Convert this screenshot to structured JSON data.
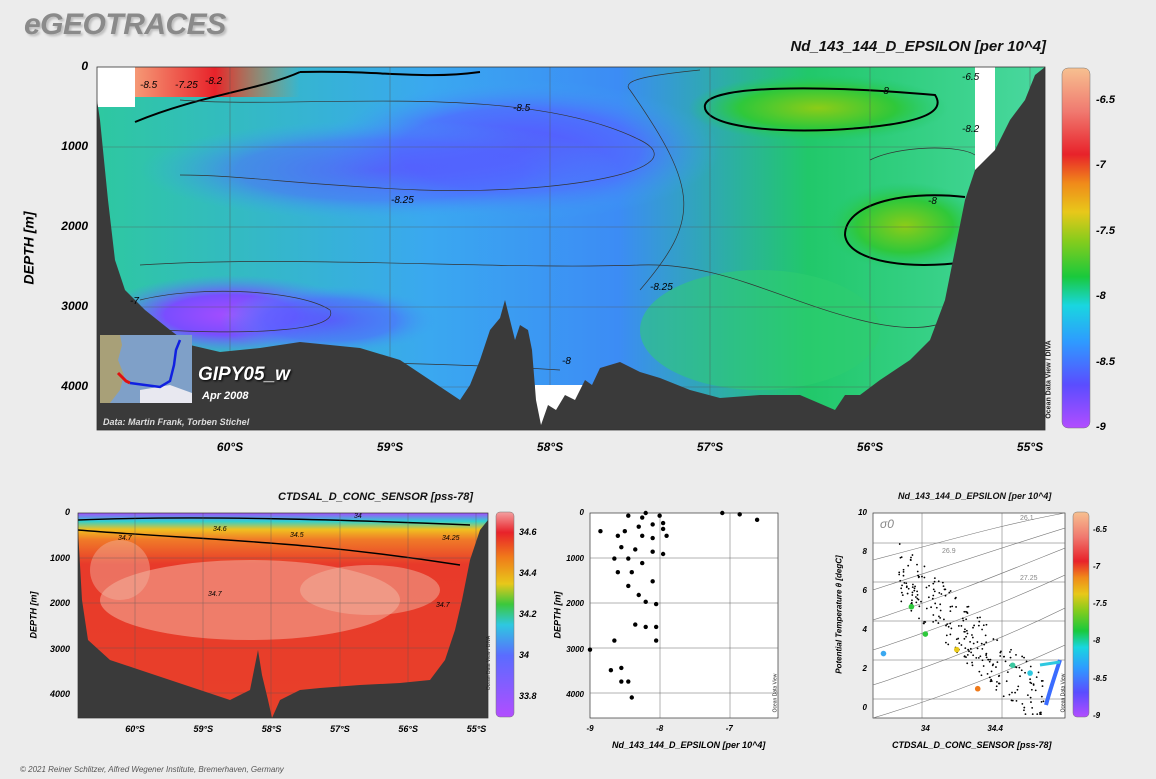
{
  "brand": "eGEOTRACES",
  "copyright": "© 2021 Reiner Schlitzer, Alfred Wegener Institute, Bremerhaven, Germany",
  "colors": {
    "background": "#ececec",
    "land": "#3a3a3a",
    "text": "#111111"
  },
  "main_section": {
    "title": "Nd_143_144_D_EPSILON [per 10^4]",
    "ylabel": "DEPTH [m]",
    "section_name": "GIPY05_w",
    "date": "Apr 2008",
    "credit": "Data: Martin Frank, Torben Stichel",
    "odv_label": "Ocean Data View / DIVA"
  },
  "salinity_section": {
    "title": "CTDSAL_D_CONC_SENSOR [pss-78]",
    "ylabel": "DEPTH [m]",
    "odv_label": "Ocean Data View / DIVA"
  },
  "scatter": {
    "odv_label": "Ocean Data View"
  },
  "ts_plot": {
    "title": "Nd_143_144_D_EPSILON [per 10^4]",
    "sigma_label": "σ0",
    "odv_label": "Ocean Data View"
  },
  "chart_data": [
    {
      "type": "heatmap",
      "title": "Nd_143_144_D_EPSILON [per 10^4]",
      "xlabel": "",
      "ylabel": "DEPTH [m]",
      "x_ticks": [
        "60°S",
        "59°S",
        "58°S",
        "57°S",
        "56°S",
        "55°S"
      ],
      "x_tick_values": [
        -60,
        -59,
        -58,
        -57,
        -56,
        -55
      ],
      "xlim": [
        -60.8,
        -54.9
      ],
      "y_ticks": [
        0,
        1000,
        2000,
        3000,
        4000
      ],
      "ylim": [
        4500,
        0
      ],
      "colorbar": {
        "range": [
          -9,
          -6.25
        ],
        "ticks": [
          "-6.5",
          "-7",
          "-7.5",
          "-8",
          "-8.5",
          "-9"
        ]
      },
      "contour_labels": [
        "-8.5",
        "-8.25",
        "-8.25",
        "-8",
        "-8",
        "-8",
        "-8.5",
        "-7.25",
        "-7",
        "-6.5",
        "-8.2",
        "-8.2"
      ],
      "grid": true
    },
    {
      "type": "heatmap",
      "title": "CTDSAL_D_CONC_SENSOR [pss-78]",
      "xlabel": "",
      "ylabel": "DEPTH [m]",
      "x_ticks": [
        "60°S",
        "59°S",
        "58°S",
        "57°S",
        "56°S",
        "55°S"
      ],
      "x_tick_values": [
        -60,
        -59,
        -58,
        -57,
        -56,
        -55
      ],
      "xlim": [
        -60.8,
        -54.9
      ],
      "y_ticks": [
        0,
        1000,
        2000,
        3000,
        4000
      ],
      "ylim": [
        4500,
        0
      ],
      "colorbar": {
        "range": [
          33.7,
          34.7
        ],
        "ticks": [
          "34.6",
          "34.4",
          "34.2",
          "34",
          "33.8"
        ]
      },
      "contour_labels": [
        "34",
        "34.6",
        "34.5",
        "34.25",
        "34.7",
        "34.7",
        "34.7"
      ],
      "grid": true
    },
    {
      "type": "scatter",
      "title": "",
      "xlabel": "Nd_143_144_D_EPSILON [per 10^4]",
      "ylabel": "DEPTH [m]",
      "x_ticks": [
        -9,
        -8,
        -7
      ],
      "xlim": [
        -9,
        -6.3
      ],
      "y_ticks": [
        0,
        1000,
        2000,
        3000,
        4000
      ],
      "ylim": [
        4500,
        0
      ],
      "points": [
        [
          -7.1,
          0
        ],
        [
          -6.85,
          30
        ],
        [
          -6.6,
          150
        ],
        [
          -8.85,
          400
        ],
        [
          -8.2,
          0
        ],
        [
          -8.25,
          100
        ],
        [
          -8.0,
          60
        ],
        [
          -8.45,
          60
        ],
        [
          -8.1,
          250
        ],
        [
          -7.95,
          220
        ],
        [
          -8.3,
          300
        ],
        [
          -7.95,
          350
        ],
        [
          -8.5,
          400
        ],
        [
          -8.25,
          500
        ],
        [
          -8.6,
          500
        ],
        [
          -8.1,
          550
        ],
        [
          -7.9,
          500
        ],
        [
          -8.55,
          750
        ],
        [
          -8.35,
          800
        ],
        [
          -8.1,
          850
        ],
        [
          -7.95,
          900
        ],
        [
          -8.45,
          1000
        ],
        [
          -8.65,
          1000
        ],
        [
          -8.25,
          1100
        ],
        [
          -8.6,
          1300
        ],
        [
          -8.4,
          1300
        ],
        [
          -8.1,
          1500
        ],
        [
          -8.45,
          1600
        ],
        [
          -8.3,
          1800
        ],
        [
          -8.2,
          1950
        ],
        [
          -8.05,
          2000
        ],
        [
          -8.05,
          2500
        ],
        [
          -8.35,
          2450
        ],
        [
          -8.2,
          2500
        ],
        [
          -8.65,
          2800
        ],
        [
          -8.05,
          2800
        ],
        [
          -9.0,
          3000
        ],
        [
          -8.55,
          3400
        ],
        [
          -8.7,
          3450
        ],
        [
          -8.55,
          3700
        ],
        [
          -8.45,
          3700
        ],
        [
          -8.4,
          4050
        ]
      ],
      "grid": true
    },
    {
      "type": "scatter",
      "title": "Nd_143_144_D_EPSILON [per 10^4]",
      "xlabel": "CTDSAL_D_CONC_SENSOR [pss-78]",
      "ylabel": "Potential Temperature θ [degC]",
      "x_ticks": [
        34,
        34.4
      ],
      "xlim": [
        33.7,
        34.8
      ],
      "y_ticks": [
        0,
        2,
        4,
        6,
        8,
        10
      ],
      "ylim": [
        -0.5,
        10
      ],
      "isopycnal_labels": [
        "26.1",
        "26.9",
        "27.25"
      ],
      "colorbar": {
        "range": [
          -9,
          -6.25
        ],
        "ticks": [
          "-6.5",
          "-7",
          "-7.5",
          "-8",
          "-8.5",
          "-9"
        ]
      },
      "grid": true
    }
  ]
}
